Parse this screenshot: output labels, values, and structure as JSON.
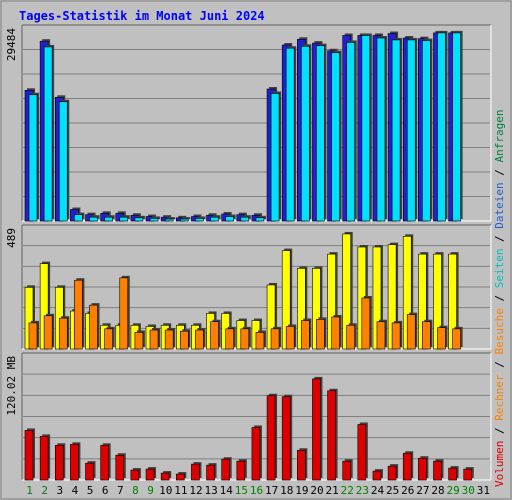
{
  "chart_data": {
    "type": "bar",
    "title": "Tages-Statistik im Monat Juni 2024",
    "days": [
      "1",
      "2",
      "3",
      "4",
      "5",
      "6",
      "7",
      "8",
      "9",
      "10",
      "11",
      "12",
      "13",
      "14",
      "15",
      "16",
      "17",
      "18",
      "19",
      "20",
      "21",
      "22",
      "23",
      "24",
      "25",
      "26",
      "27",
      "28",
      "29",
      "30",
      "31"
    ],
    "weekend_days": [
      "1",
      "2",
      "8",
      "9",
      "15",
      "16",
      "22",
      "23",
      "29",
      "30"
    ],
    "panels": [
      {
        "key": "requests",
        "ylabel": "29484",
        "ymax": 29484,
        "series": [
          {
            "name": "Anfragen",
            "color": "#2020d0",
            "values": [
              20500,
              28200,
              19400,
              1800,
              1000,
              1200,
              1200,
              900,
              700,
              600,
              500,
              700,
              900,
              1100,
              1000,
              900,
              20700,
              27600,
              28500,
              27900,
              26700,
              29100,
              29100,
              29100,
              29400,
              28700,
              28600,
              29500,
              29500,
              null,
              null
            ]
          },
          {
            "name": "Dateien",
            "color": "#00e0ff",
            "values": [
              19800,
              27300,
              18700,
              1000,
              600,
              600,
              600,
              500,
              400,
              300,
              300,
              400,
              600,
              700,
              600,
              500,
              20000,
              27100,
              27400,
              27500,
              26400,
              28000,
              29100,
              28700,
              28400,
              28400,
              28300,
              29500,
              29500,
              null,
              null
            ]
          }
        ]
      },
      {
        "key": "visits",
        "ylabel": "489",
        "ymax": 489,
        "series": [
          {
            "name": "Seiten",
            "color": "#ffff00",
            "values": [
              260,
              360,
              260,
              160,
              150,
              100,
              100,
              100,
              95,
              100,
              100,
              100,
              150,
              150,
              120,
              120,
              270,
              415,
              340,
              340,
              400,
              485,
              430,
              430,
              440,
              475,
              400,
              400,
              400,
              null,
              null
            ]
          },
          {
            "name": "Besuche",
            "color": "#ff8000",
            "values": [
              110,
              140,
              130,
              290,
              185,
              85,
              300,
              70,
              80,
              80,
              75,
              80,
              115,
              85,
              85,
              70,
              85,
              95,
              120,
              125,
              135,
              100,
              215,
              115,
              110,
              145,
              115,
              90,
              85,
              null,
              null
            ]
          }
        ]
      },
      {
        "key": "volume",
        "ylabel": "120.02 MB",
        "ymax": 120.02,
        "series": [
          {
            "name": "Volumen",
            "color": "#dd0000",
            "values": [
              50,
              44,
              35,
              36,
              17,
              35,
              25,
              10,
              11,
              7,
              6,
              16,
              15,
              21,
              19,
              53,
              85,
              84,
              30,
              102,
              90,
              19,
              56,
              9,
              14,
              27,
              22,
              19,
              12,
              11,
              null
            ]
          }
        ]
      }
    ],
    "legend": [
      "Volumen",
      "/",
      "Rechner",
      "/",
      "Besuche",
      "/",
      "Seiten",
      "/",
      "Dateien",
      "/",
      "Anfragen"
    ],
    "legend_colors": {
      "Volumen": "#dd0000",
      "Rechner": "#ff8000",
      "Besuche": "#ff8000",
      "Seiten": "#00c0c0",
      "Dateien": "#2060d0",
      "Anfragen": "#008040",
      "/": "#000000"
    }
  },
  "colors": {
    "background": "#c0c0c0",
    "frame": "#808080",
    "title": "#0000ff",
    "weekday_label": "#000000",
    "weekend_label": "#008000"
  }
}
